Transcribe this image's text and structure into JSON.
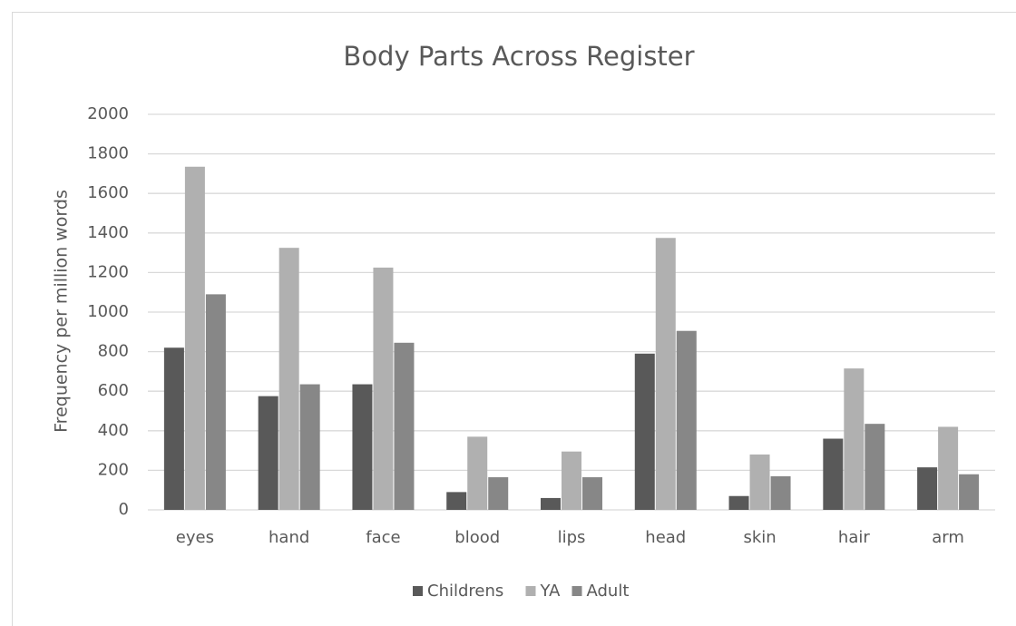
{
  "chart_data": {
    "type": "bar",
    "title": "Body Parts Across Register",
    "ylabel": "Frequency per million words",
    "categories": [
      "eyes",
      "hand",
      "face",
      "blood",
      "lips",
      "head",
      "skin",
      "hair",
      "arm"
    ],
    "series": [
      {
        "name": "Childrens",
        "color": "#595959",
        "values": [
          820,
          575,
          635,
          90,
          60,
          790,
          70,
          360,
          215
        ]
      },
      {
        "name": "YA",
        "color": "#b0b0b0",
        "values": [
          1735,
          1325,
          1225,
          370,
          295,
          1375,
          280,
          715,
          420
        ]
      },
      {
        "name": "Adult",
        "color": "#878787",
        "values": [
          1090,
          635,
          845,
          165,
          165,
          905,
          170,
          435,
          180
        ]
      }
    ],
    "ylim": [
      0,
      2000
    ],
    "yticks": [
      0,
      200,
      400,
      600,
      800,
      1000,
      1200,
      1400,
      1600,
      1800,
      2000
    ],
    "grid": true,
    "legend": "bottom"
  }
}
